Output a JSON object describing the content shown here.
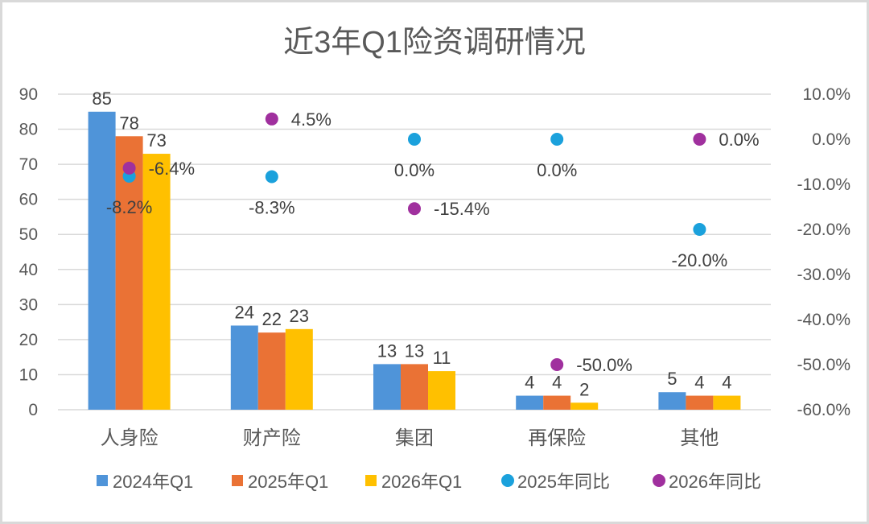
{
  "chart_data": {
    "type": "bar",
    "title": "近3年Q1险资调研情况",
    "categories": [
      "人身险",
      "财产险",
      "集团",
      "再保险",
      "其他"
    ],
    "series": [
      {
        "name": "2024年Q1",
        "kind": "bar",
        "axis": "left",
        "color": "#4f94d9",
        "values": [
          85,
          24,
          13,
          4,
          5
        ],
        "labels": [
          "85",
          "24",
          "13",
          "4",
          "5"
        ]
      },
      {
        "name": "2025年Q1",
        "kind": "bar",
        "axis": "left",
        "color": "#ea7235",
        "values": [
          78,
          22,
          13,
          4,
          4
        ],
        "labels": [
          "78",
          "22",
          "13",
          "4",
          "4"
        ]
      },
      {
        "name": "2026年Q1",
        "kind": "bar",
        "axis": "left",
        "color": "#ffc000",
        "values": [
          73,
          23,
          11,
          2,
          4
        ],
        "labels": [
          "73",
          "23",
          "11",
          "2",
          "4"
        ]
      },
      {
        "name": "2025年同比",
        "kind": "scatter",
        "axis": "right",
        "color": "#1ba1dc",
        "values": [
          -8.2,
          -8.3,
          0.0,
          0.0,
          -20.0
        ],
        "labels": [
          "-8.2%",
          "-8.3%",
          "0.0%",
          "0.0%",
          "-20.0%"
        ]
      },
      {
        "name": "2026年同比",
        "kind": "scatter",
        "axis": "right",
        "color": "#a0309e",
        "values": [
          -6.4,
          4.5,
          -15.4,
          -50.0,
          0.0
        ],
        "labels": [
          "-6.4%",
          "4.5%",
          "-15.4%",
          "-50.0%",
          "0.0%"
        ]
      }
    ],
    "left_axis": {
      "min": 0,
      "max": 90,
      "step": 10,
      "ticks": [
        "0",
        "10",
        "20",
        "30",
        "40",
        "50",
        "60",
        "70",
        "80",
        "90"
      ]
    },
    "right_axis": {
      "min": -60,
      "max": 10,
      "step": 10,
      "ticks": [
        "-60.0%",
        "-50.0%",
        "-40.0%",
        "-30.0%",
        "-20.0%",
        "-10.0%",
        "0.0%",
        "10.0%"
      ]
    },
    "grid": true,
    "legend_position": "bottom"
  }
}
